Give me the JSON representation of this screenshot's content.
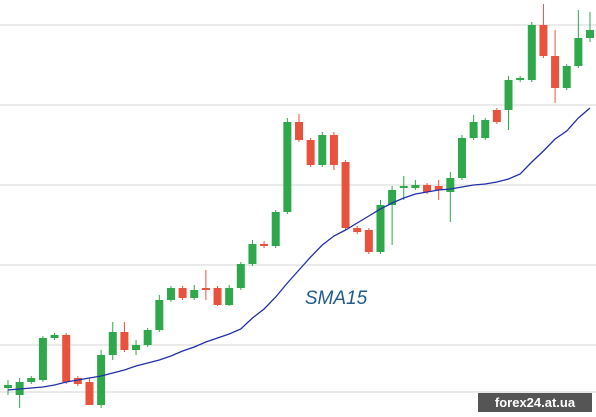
{
  "chart_data": {
    "type": "candlestick",
    "annotation": "SMA15",
    "watermark": "forex24.at.ua",
    "categories": [
      null,
      null,
      null,
      null,
      null,
      null,
      null,
      null,
      null,
      null,
      null,
      null,
      null,
      null,
      null,
      null,
      null,
      null,
      null,
      null,
      null,
      null,
      null,
      null,
      null,
      null,
      null,
      null,
      null,
      null,
      null,
      null,
      null,
      null,
      null,
      null,
      null,
      null,
      null,
      null,
      null,
      null,
      null,
      null,
      null,
      null,
      null,
      null,
      null,
      null,
      null
    ],
    "open": [
      29,
      22,
      35,
      37,
      79,
      82,
      39,
      35,
      12,
      62,
      85,
      67,
      72,
      87,
      117,
      129,
      119,
      129,
      129,
      112,
      129,
      153,
      173,
      171,
      205,
      295,
      277,
      252,
      282,
      255,
      189,
      187,
      165,
      212,
      229,
      229,
      232,
      231,
      225,
      239,
      279,
      279,
      307,
      307,
      337,
      337,
      392,
      361,
      329,
      351,
      379
    ],
    "high": [
      37,
      39,
      41,
      81,
      84,
      84,
      41,
      39,
      67,
      95,
      95,
      77,
      89,
      122,
      131,
      131,
      132,
      147,
      131,
      132,
      155,
      177,
      176,
      207,
      299,
      303,
      279,
      285,
      285,
      257,
      191,
      189,
      217,
      231,
      241,
      237,
      234,
      237,
      245,
      282,
      302,
      299,
      309,
      341,
      341,
      395,
      413,
      387,
      353,
      407,
      405
    ],
    "low": [
      22,
      9,
      33,
      35,
      77,
      33,
      31,
      12,
      9,
      57,
      65,
      62,
      70,
      85,
      115,
      117,
      117,
      117,
      111,
      111,
      127,
      151,
      169,
      169,
      203,
      275,
      250,
      250,
      247,
      187,
      183,
      163,
      163,
      172,
      217,
      227,
      223,
      217,
      195,
      237,
      277,
      277,
      293,
      287,
      335,
      335,
      359,
      314,
      327,
      349,
      375
    ],
    "close": [
      32,
      35,
      39,
      79,
      82,
      35,
      33,
      12,
      62,
      85,
      67,
      72,
      87,
      117,
      129,
      119,
      127,
      127,
      112,
      129,
      153,
      173,
      171,
      205,
      295,
      277,
      252,
      282,
      252,
      189,
      185,
      165,
      212,
      227,
      231,
      232,
      225,
      227,
      239,
      279,
      295,
      297,
      295,
      337,
      339,
      392,
      361,
      329,
      351,
      379,
      387
    ],
    "up_color": "#2ea84a",
    "down_color": "#e9533e",
    "sma": {
      "color": "#2230a8",
      "values": [
        27,
        28,
        29,
        30,
        32,
        35,
        37,
        39,
        41,
        44,
        47,
        51,
        54,
        57,
        61,
        66,
        70,
        75,
        79,
        83,
        88,
        99,
        108,
        120,
        134,
        147,
        160,
        172,
        181,
        187,
        194,
        201,
        208,
        214,
        219,
        223,
        225,
        227,
        228,
        230,
        232,
        233,
        235,
        238,
        243,
        255,
        266,
        278,
        286,
        299,
        309
      ]
    },
    "ylim": [
      0,
      417
    ],
    "yticks": [
      25,
      72,
      152,
      232,
      312,
      392
    ],
    "grid": true
  }
}
